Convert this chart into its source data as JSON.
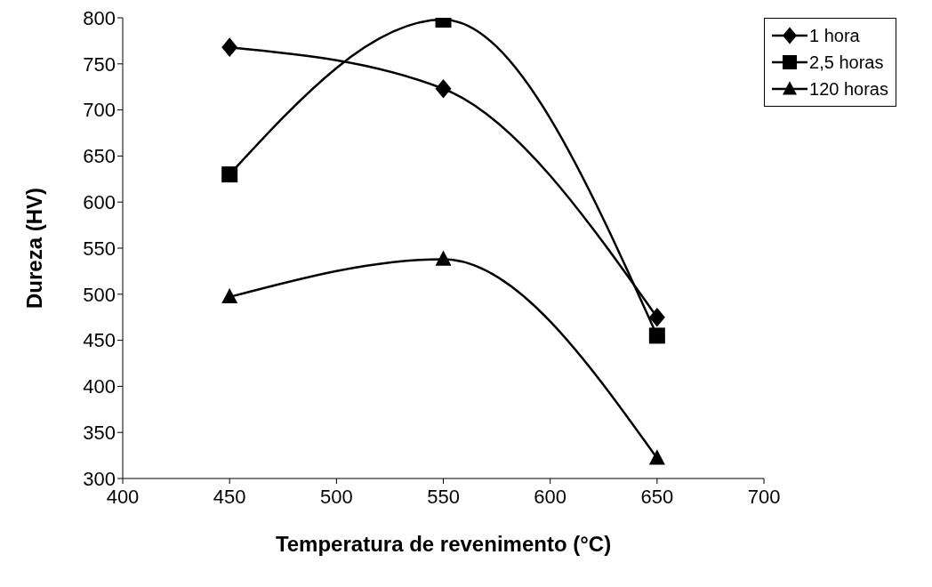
{
  "chart_data": {
    "type": "line",
    "xlabel": "Temperatura de revenimento (°C)",
    "ylabel": "Dureza (HV)",
    "x": [
      450,
      550,
      650
    ],
    "series": [
      {
        "name": "1 hora",
        "color": "#000000",
        "marker": "diamond",
        "values": [
          768,
          723,
          475
        ]
      },
      {
        "name": "2,5 horas",
        "color": "#000000",
        "marker": "square",
        "values": [
          630,
          798,
          455
        ]
      },
      {
        "name": "120 horas",
        "color": "#000000",
        "marker": "triangle",
        "values": [
          497,
          538,
          322
        ]
      }
    ],
    "xlim": [
      400,
      700
    ],
    "xticks": [
      400,
      450,
      500,
      550,
      600,
      650,
      700
    ],
    "ylim": [
      300,
      800
    ],
    "yticks": [
      300,
      350,
      400,
      450,
      500,
      550,
      600,
      650,
      700,
      750,
      800
    ],
    "grid": false,
    "legend": "top right",
    "line_style": "solid"
  }
}
